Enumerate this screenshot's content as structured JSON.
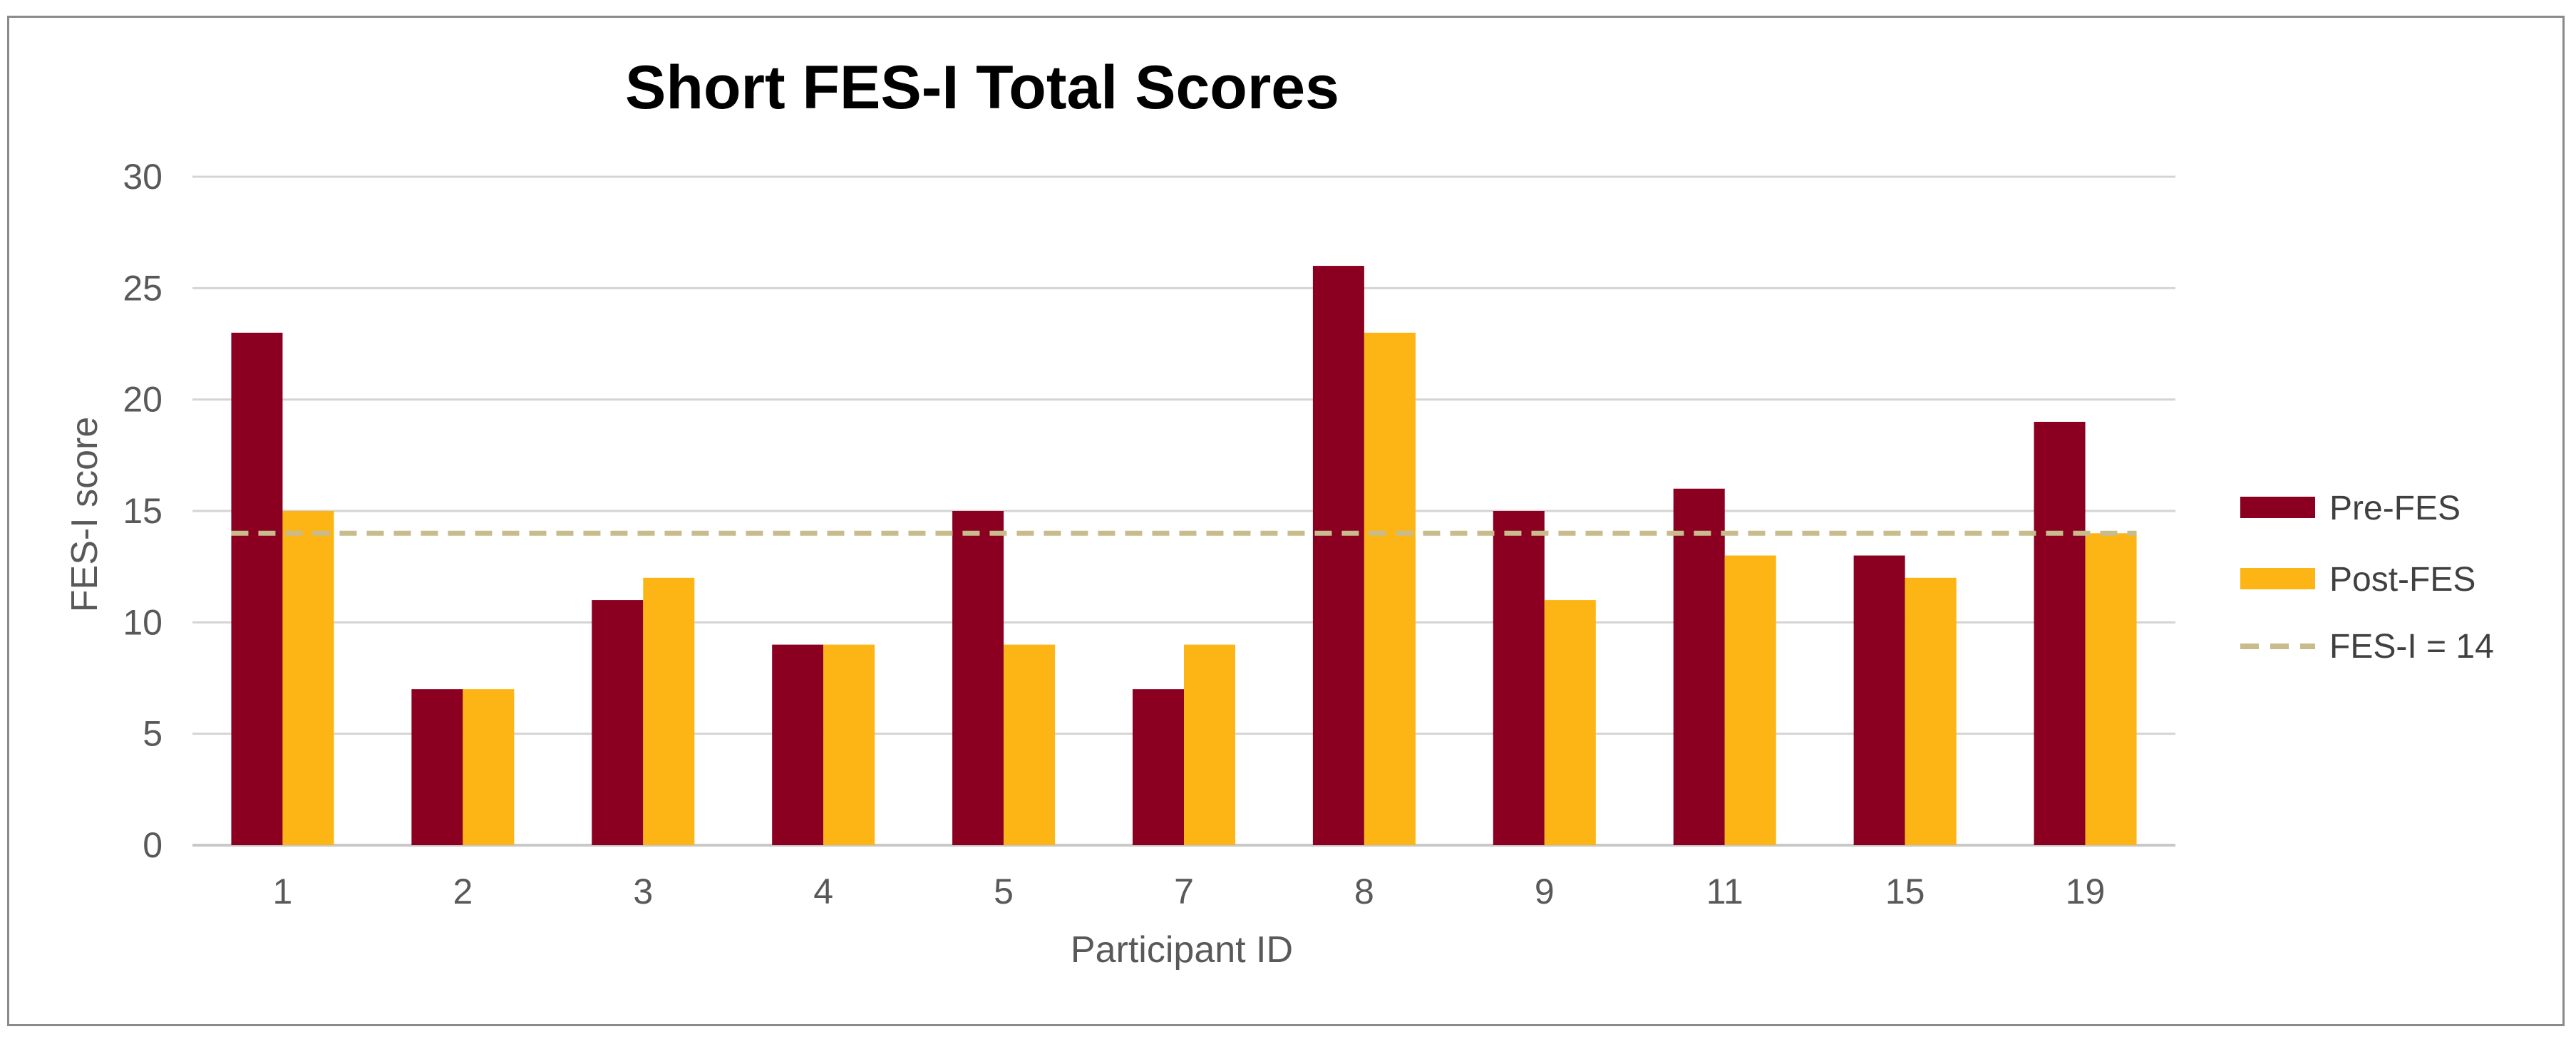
{
  "chart_data": {
    "type": "bar",
    "title": "Short FES-I Total Scores",
    "xlabel": "Participant ID",
    "ylabel": "FES-I score",
    "categories": [
      "1",
      "2",
      "3",
      "4",
      "5",
      "7",
      "8",
      "9",
      "11",
      "15",
      "19"
    ],
    "series": [
      {
        "name": "Pre-FES",
        "color": "#8B0021",
        "values": [
          23,
          7,
          11,
          9,
          15,
          7,
          26,
          15,
          16,
          13,
          19
        ]
      },
      {
        "name": "Post-FES",
        "color": "#FDB515",
        "values": [
          15,
          7,
          12,
          9,
          9,
          9,
          23,
          11,
          13,
          12,
          14
        ]
      }
    ],
    "reference_line": {
      "name": "FES-I = 14",
      "value": 14,
      "color": "#C8BC8C",
      "style": "dashed"
    },
    "ylim": [
      0,
      30
    ],
    "yticks": [
      "0",
      "5",
      "10",
      "15",
      "20",
      "25",
      "30"
    ],
    "grid": true,
    "legend_position": "right"
  }
}
